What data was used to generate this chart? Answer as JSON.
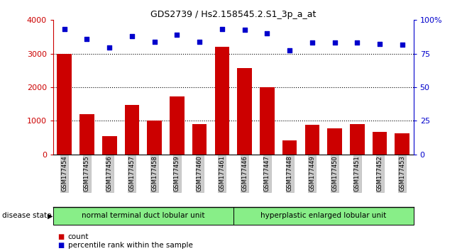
{
  "title": "GDS2739 / Hs2.158545.2.S1_3p_a_at",
  "samples": [
    "GSM177454",
    "GSM177455",
    "GSM177456",
    "GSM177457",
    "GSM177458",
    "GSM177459",
    "GSM177460",
    "GSM177461",
    "GSM177446",
    "GSM177447",
    "GSM177448",
    "GSM177449",
    "GSM177450",
    "GSM177451",
    "GSM177452",
    "GSM177453"
  ],
  "counts": [
    3000,
    1200,
    550,
    1480,
    1000,
    1720,
    900,
    3200,
    2570,
    2000,
    420,
    880,
    780,
    900,
    680,
    630
  ],
  "percentiles_pct": [
    93.5,
    86.0,
    79.5,
    88.0,
    84.0,
    89.0,
    84.0,
    93.5,
    93.0,
    90.0,
    77.5,
    83.5,
    83.5,
    83.5,
    82.0,
    81.5
  ],
  "bar_color": "#cc0000",
  "dot_color": "#0000cc",
  "group1_label": "normal terminal duct lobular unit",
  "group2_label": "hyperplastic enlarged lobular unit",
  "group1_count": 8,
  "group2_count": 8,
  "group1_bg": "#88ee88",
  "group2_bg": "#88ee88",
  "ylim_left": [
    0,
    4000
  ],
  "ylim_right": [
    0,
    100
  ],
  "yticks_left": [
    0,
    1000,
    2000,
    3000,
    4000
  ],
  "yticks_right": [
    0,
    25,
    50,
    75,
    100
  ],
  "ytick_right_labels": [
    "0",
    "25",
    "50",
    "75",
    "100%"
  ],
  "grid_values": [
    1000,
    2000,
    3000
  ],
  "legend_count_label": "count",
  "legend_percentile_label": "percentile rank within the sample",
  "disease_state_label": "disease state",
  "tick_bg_color": "#cccccc"
}
